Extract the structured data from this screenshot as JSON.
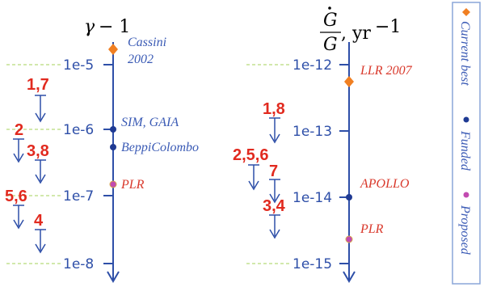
{
  "colors": {
    "axis": "#2e4fa8",
    "current_best": "#f07f22",
    "funded": "#1f3a93",
    "proposed": "#c24bb0",
    "constraint_number": "#e12a1f",
    "guide": "#b7d97a",
    "legend_border": "#8aa6d8"
  },
  "left_panel": {
    "title_symbol": "γ − 1",
    "ticks": [
      "1e-5",
      "1e-6",
      "1e-7",
      "1e-8"
    ],
    "points": [
      {
        "label_line1": "Cassini",
        "label_line2": "2002",
        "value": "1e-4.8",
        "kind": "current_best"
      },
      {
        "label_line1": "SIM, GAIA",
        "value": "1e-6",
        "kind": "funded"
      },
      {
        "label_line1": "BeppiColombo",
        "value": "1e-6.3",
        "kind": "funded"
      },
      {
        "label_line1": "PLR",
        "value": "1e-6.8",
        "kind": "proposed"
      }
    ],
    "constraints": [
      {
        "label": "1,7"
      },
      {
        "label": "2"
      },
      {
        "label": "3,8"
      },
      {
        "label": "5,6"
      },
      {
        "label": "4"
      }
    ]
  },
  "right_panel": {
    "title_num": "Ġ",
    "title_den": "G",
    "title_unit": ", yr",
    "title_exp": "−1",
    "ticks": [
      "1e-12",
      "1e-13",
      "1e-14",
      "1e-15"
    ],
    "points": [
      {
        "label_line1": "LLR 2007",
        "value": "1e-12.2",
        "kind": "current_best"
      },
      {
        "label_line1": "APOLLO",
        "value": "1e-14",
        "kind": "funded"
      },
      {
        "label_line1": "PLR",
        "value": "1e-14.6",
        "kind": "proposed"
      }
    ],
    "constraints": [
      {
        "label": "1,8"
      },
      {
        "label": "2,5,6"
      },
      {
        "label": "7"
      },
      {
        "label": "3,4"
      }
    ]
  },
  "legend": {
    "items": [
      {
        "label": "Current best",
        "marker": "diamond",
        "kind": "current_best"
      },
      {
        "label": "Funded",
        "marker": "dot",
        "kind": "funded"
      },
      {
        "label": "Proposed",
        "marker": "dot",
        "kind": "proposed"
      }
    ]
  }
}
